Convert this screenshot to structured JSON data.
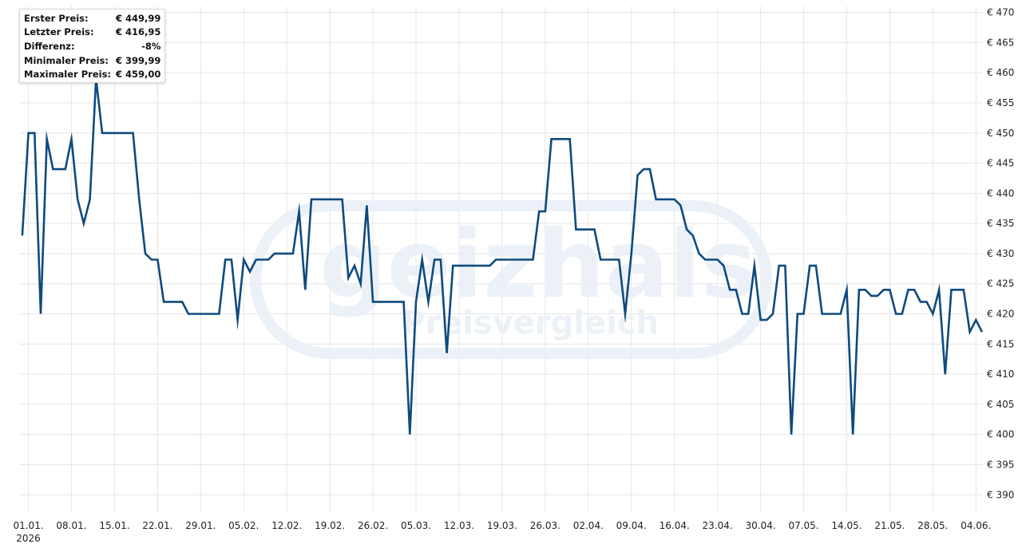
{
  "watermark": {
    "brand": "geizhals",
    "tagline": "Preisvergleich"
  },
  "stats": [
    {
      "label": "Erster Preis:",
      "value": "€ 449,99"
    },
    {
      "label": "Letzter Preis:",
      "value": "€ 416,95"
    },
    {
      "label": "Differenz:",
      "value": "-8%"
    },
    {
      "label": "Minimaler Preis:",
      "value": "€ 399,99"
    },
    {
      "label": "Maximaler Preis:",
      "value": "€ 459,00"
    }
  ],
  "colors": {
    "line": "#0e4a7e",
    "grid": "#e6e6e6",
    "watermark": "#e9eff7"
  },
  "chart_data": {
    "type": "line",
    "title": "",
    "xlabel": "",
    "ylabel": "",
    "ylim": [
      387,
      471
    ],
    "grid": true,
    "y_axis_side": "right",
    "y_ticks": [
      470,
      465,
      460,
      455,
      450,
      445,
      440,
      435,
      430,
      425,
      420,
      415,
      410,
      405,
      400,
      395,
      390
    ],
    "y_tick_labels": [
      "€ 470",
      "€ 465",
      "€ 460",
      "€ 455",
      "€ 450",
      "€ 445",
      "€ 440",
      "€ 435",
      "€ 430",
      "€ 425",
      "€ 420",
      "€ 415",
      "€ 410",
      "€ 405",
      "€ 400",
      "€ 395",
      "€ 390"
    ],
    "x_ticks": [
      "2026-01-01",
      "2026-01-08",
      "2026-01-15",
      "2026-01-22",
      "2026-01-29",
      "2026-02-05",
      "2026-02-12",
      "2026-02-19",
      "2026-02-26",
      "2026-03-05",
      "2026-03-12",
      "2026-03-19",
      "2026-03-26",
      "2026-04-02",
      "2026-04-09",
      "2026-04-16",
      "2026-04-23",
      "2026-04-30",
      "2026-05-07",
      "2026-05-14",
      "2026-05-21",
      "2026-05-28",
      "2026-06-04"
    ],
    "x_tick_labels": [
      "01.01.",
      "08.01.",
      "15.01.",
      "22.01.",
      "29.01.",
      "05.02.",
      "12.02.",
      "19.02.",
      "26.02.",
      "05.03.",
      "12.03.",
      "19.03.",
      "26.03.",
      "02.04.",
      "09.04.",
      "16.04.",
      "23.04.",
      "30.04.",
      "07.05.",
      "14.05.",
      "21.05.",
      "28.05.",
      "04.06."
    ],
    "x_year_label": "2026",
    "series": [
      {
        "x": [
          "2025-12-31",
          "2026-01-01",
          "2026-01-02",
          "2026-01-03",
          "2026-01-04",
          "2026-01-05",
          "2026-01-06",
          "2026-01-07",
          "2026-01-08",
          "2026-01-09",
          "2026-01-10",
          "2026-01-11",
          "2026-01-12",
          "2026-01-13",
          "2026-01-14",
          "2026-01-15",
          "2026-01-16",
          "2026-01-17",
          "2026-01-18",
          "2026-01-19",
          "2026-01-20",
          "2026-01-21",
          "2026-01-22",
          "2026-01-23",
          "2026-01-24",
          "2026-01-25",
          "2026-01-26",
          "2026-01-27",
          "2026-01-28",
          "2026-01-29",
          "2026-01-30",
          "2026-01-31",
          "2026-02-01",
          "2026-02-02",
          "2026-02-03",
          "2026-02-04",
          "2026-02-05",
          "2026-02-06",
          "2026-02-07",
          "2026-02-08",
          "2026-02-09",
          "2026-02-10",
          "2026-02-11",
          "2026-02-12",
          "2026-02-13",
          "2026-02-14",
          "2026-02-15",
          "2026-02-16",
          "2026-02-17",
          "2026-02-18",
          "2026-02-19",
          "2026-02-20",
          "2026-02-21",
          "2026-02-22",
          "2026-02-23",
          "2026-02-24",
          "2026-02-25",
          "2026-02-26",
          "2026-02-27",
          "2026-02-28",
          "2026-03-01",
          "2026-03-02",
          "2026-03-03",
          "2026-03-04",
          "2026-03-05",
          "2026-03-06",
          "2026-03-07",
          "2026-03-08",
          "2026-03-09",
          "2026-03-10",
          "2026-03-11",
          "2026-03-12",
          "2026-03-13",
          "2026-03-14",
          "2026-03-15",
          "2026-03-16",
          "2026-03-17",
          "2026-03-18",
          "2026-03-19",
          "2026-03-20",
          "2026-03-21",
          "2026-03-22",
          "2026-03-23",
          "2026-03-24",
          "2026-03-25",
          "2026-03-26",
          "2026-03-27",
          "2026-03-28",
          "2026-03-29",
          "2026-03-30",
          "2026-03-31",
          "2026-04-01",
          "2026-04-02",
          "2026-04-03",
          "2026-04-04",
          "2026-04-05",
          "2026-04-06",
          "2026-04-07",
          "2026-04-08",
          "2026-04-09",
          "2026-04-10",
          "2026-04-11",
          "2026-04-12",
          "2026-04-13",
          "2026-04-14",
          "2026-04-15",
          "2026-04-16",
          "2026-04-17",
          "2026-04-18",
          "2026-04-19",
          "2026-04-20",
          "2026-04-21",
          "2026-04-22",
          "2026-04-23",
          "2026-04-24",
          "2026-04-25",
          "2026-04-26",
          "2026-04-27",
          "2026-04-28",
          "2026-04-29",
          "2026-04-30",
          "2026-05-01",
          "2026-05-02",
          "2026-05-03",
          "2026-05-04",
          "2026-05-05",
          "2026-05-06",
          "2026-05-07",
          "2026-05-08",
          "2026-05-09",
          "2026-05-10",
          "2026-05-11",
          "2026-05-12",
          "2026-05-13",
          "2026-05-14",
          "2026-05-15",
          "2026-05-16",
          "2026-05-17",
          "2026-05-18",
          "2026-05-19",
          "2026-05-20",
          "2026-05-21",
          "2026-05-22",
          "2026-05-23",
          "2026-05-24",
          "2026-05-25",
          "2026-05-26",
          "2026-05-27",
          "2026-05-28",
          "2026-05-29",
          "2026-05-30",
          "2026-05-31",
          "2026-06-01",
          "2026-06-02",
          "2026-06-03",
          "2026-06-04",
          "2026-06-05"
        ],
        "y": [
          433,
          450,
          450,
          420,
          449,
          444,
          444,
          444,
          449,
          439,
          435,
          439,
          459,
          450,
          450,
          450,
          450,
          450,
          450,
          439,
          430,
          429,
          429,
          422,
          422,
          422,
          422,
          420,
          420,
          420,
          420,
          420,
          420,
          429,
          429,
          419,
          429,
          427,
          429,
          429,
          429,
          430,
          430,
          430,
          430,
          437,
          424,
          439,
          439,
          439,
          439,
          439,
          439,
          426,
          428,
          425,
          438,
          422,
          422,
          422,
          422,
          422,
          422,
          400,
          422,
          429,
          422,
          429,
          429,
          413.5,
          428,
          428,
          428,
          428,
          428,
          428,
          428,
          429,
          429,
          429,
          429,
          429,
          429,
          429,
          437,
          437,
          449,
          449,
          449,
          449,
          434,
          434,
          434,
          434,
          429,
          429,
          429,
          429,
          420,
          430,
          443,
          444,
          444,
          439,
          439,
          439,
          439,
          438,
          434,
          433,
          430,
          429,
          429,
          429,
          428,
          424,
          424,
          420,
          420,
          428,
          419,
          419,
          420,
          428,
          428,
          400,
          420,
          420,
          428,
          428,
          420,
          420,
          420,
          420,
          424,
          400,
          424,
          424,
          423,
          423,
          424,
          424,
          420,
          420,
          424,
          424,
          422,
          422,
          420,
          424,
          410,
          424,
          424,
          424,
          417,
          419,
          417
        ]
      }
    ]
  }
}
